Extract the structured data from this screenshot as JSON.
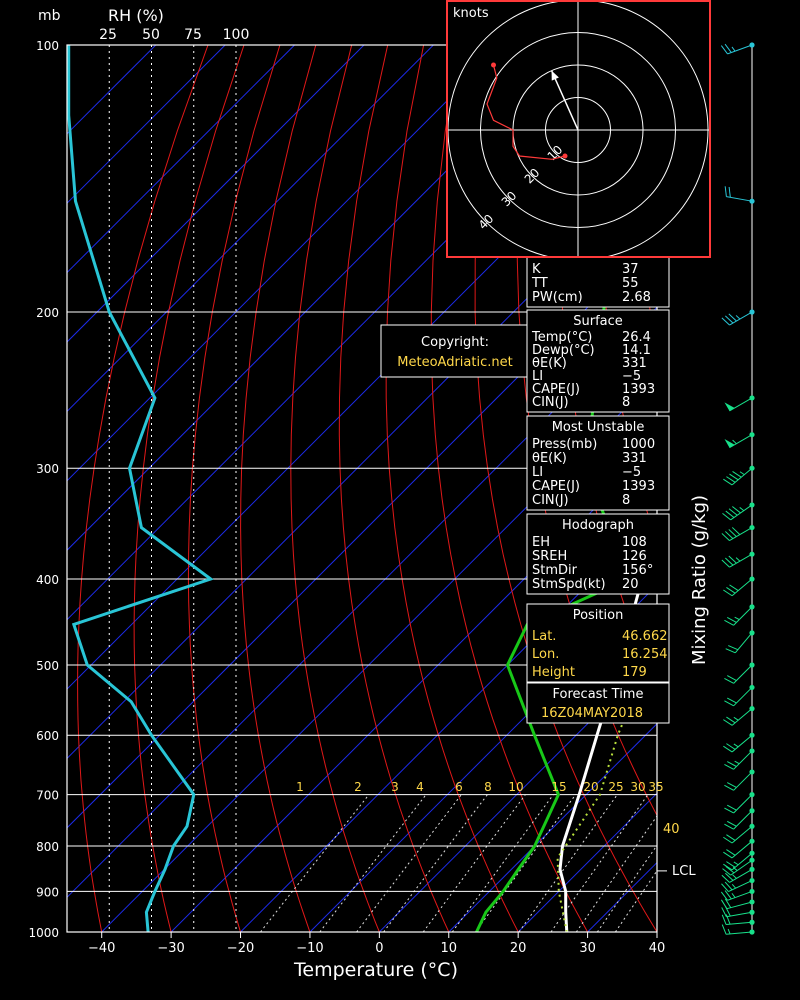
{
  "chart_data": {
    "type": "skew-t log-p sounding",
    "xlabel": "Temperature (°C)",
    "ylabel_left": "mb",
    "rh_axis_label": "RH (%)",
    "rh_ticks": [
      "25",
      "50",
      "75",
      "100"
    ],
    "mixing_ratio_axis_label": "Mixing Ratio (g/kg)",
    "mixing_ratio_labels": [
      "1",
      "2",
      "3",
      "4",
      "6",
      "8",
      "10",
      "15",
      "20",
      "25",
      "30",
      "35"
    ],
    "mixing_ratio_values": [
      1,
      2,
      3,
      4,
      6,
      8,
      10,
      15,
      20,
      25,
      30,
      35
    ],
    "x_ticks": [
      -40,
      -30,
      -20,
      -10,
      0,
      10,
      20,
      30,
      40
    ],
    "x_tick_labels": [
      "−40",
      "−30",
      "−20",
      "−10",
      "0",
      "10",
      "20",
      "30",
      "40"
    ],
    "xlim": [
      -45,
      40
    ],
    "ylim": [
      1000,
      100
    ],
    "pressure_levels": [
      100,
      200,
      300,
      400,
      500,
      600,
      700,
      800,
      900,
      1000
    ],
    "pressure_labels": [
      "100",
      "200",
      "300",
      "400",
      "500",
      "600",
      "700",
      "800",
      "900",
      "1000"
    ],
    "side_label_40": "40",
    "lcl_label": "LCL",
    "lcl_pressure": 825,
    "series": [
      {
        "name": "temperature",
        "color": "#ffffff",
        "points": [
          [
            1000,
            27
          ],
          [
            950,
            24
          ],
          [
            900,
            21
          ],
          [
            850,
            17
          ],
          [
            800,
            14
          ],
          [
            700,
            9
          ],
          [
            600,
            3
          ],
          [
            500,
            -4
          ],
          [
            400,
            -13
          ],
          [
            300,
            -24
          ],
          [
            250,
            -33
          ],
          [
            200,
            -41
          ],
          [
            150,
            -47
          ],
          [
            100,
            -56
          ]
        ]
      },
      {
        "name": "dewpoint",
        "color": "#18c818",
        "points": [
          [
            1000,
            14
          ],
          [
            950,
            12.5
          ],
          [
            900,
            12
          ],
          [
            850,
            11
          ],
          [
            800,
            10
          ],
          [
            700,
            6
          ],
          [
            600,
            -6
          ],
          [
            500,
            -20
          ],
          [
            450,
            -23
          ],
          [
            400,
            -15
          ],
          [
            300,
            -37
          ],
          [
            200,
            -57
          ],
          [
            150,
            -72
          ],
          [
            100,
            -76
          ]
        ]
      },
      {
        "name": "parcel",
        "color": "#b8e03c",
        "points": [
          [
            1000,
            27
          ],
          [
            900,
            20
          ],
          [
            825,
            15
          ],
          [
            700,
            12
          ],
          [
            600,
            6
          ],
          [
            500,
            0
          ],
          [
            400,
            -8
          ],
          [
            300,
            -20
          ],
          [
            250,
            -27
          ],
          [
            200,
            -37
          ],
          [
            150,
            -49
          ],
          [
            100,
            -66
          ]
        ]
      },
      {
        "name": "rh",
        "color": "#29c5d6",
        "points": [
          [
            1000,
            48
          ],
          [
            950,
            47
          ],
          [
            900,
            52
          ],
          [
            850,
            58
          ],
          [
            800,
            63
          ],
          [
            760,
            71
          ],
          [
            700,
            75
          ],
          [
            650,
            63
          ],
          [
            600,
            50
          ],
          [
            550,
            38
          ],
          [
            500,
            12
          ],
          [
            450,
            4
          ],
          [
            400,
            85
          ],
          [
            350,
            44
          ],
          [
            300,
            37
          ],
          [
            250,
            52
          ],
          [
            200,
            25
          ],
          [
            150,
            5
          ],
          [
            120,
            1
          ],
          [
            100,
            1
          ]
        ]
      }
    ],
    "wind_barbs": {
      "pressures": [
        100,
        150,
        200,
        250,
        275,
        300,
        330,
        350,
        375,
        400,
        430,
        460,
        500,
        530,
        560,
        600,
        625,
        660,
        700,
        730,
        760,
        790,
        815,
        830,
        850,
        875,
        900,
        925,
        950,
        975,
        1000
      ],
      "speeds_kt": [
        25,
        20,
        35,
        50,
        55,
        45,
        45,
        40,
        35,
        30,
        25,
        22,
        20,
        20,
        25,
        25,
        25,
        20,
        20,
        20,
        20,
        22,
        25,
        25,
        25,
        25,
        25,
        22,
        22,
        20,
        18
      ],
      "directions_deg": [
        250,
        280,
        240,
        240,
        240,
        230,
        235,
        240,
        240,
        230,
        225,
        220,
        225,
        225,
        230,
        230,
        225,
        225,
        225,
        225,
        230,
        230,
        230,
        235,
        240,
        245,
        250,
        255,
        260,
        265,
        265
      ]
    }
  },
  "copyright": {
    "line1": "Copyright:",
    "line2": "MeteoAdriatic.net"
  },
  "hodograph": {
    "title": "knots",
    "ring_labels": [
      "10",
      "20",
      "30",
      "40"
    ],
    "ring_values_kt": [
      10,
      20,
      30,
      40
    ],
    "trace_uv_kt": [
      [
        -4,
        -8
      ],
      [
        -8,
        -9
      ],
      [
        -18,
        -8
      ],
      [
        -20,
        -5
      ],
      [
        -20,
        0
      ],
      [
        -26,
        3
      ],
      [
        -28,
        8
      ],
      [
        -25,
        16
      ],
      [
        -26,
        20
      ]
    ]
  },
  "indices": {
    "rows": [
      {
        "label": "K",
        "value": "37"
      },
      {
        "label": "TT",
        "value": "55"
      },
      {
        "label": "PW(cm)",
        "value": "2.68"
      }
    ]
  },
  "surface": {
    "title": "Surface",
    "rows": [
      {
        "label": "Temp(°C)",
        "value": "26.4"
      },
      {
        "label": "Dewp(°C)",
        "value": "14.1"
      },
      {
        "label": "θE(K)",
        "value": "331"
      },
      {
        "label": "LI",
        "value": "−5"
      },
      {
        "label": "CAPE(J)",
        "value": "1393"
      },
      {
        "label": "CIN(J)",
        "value": "8"
      }
    ]
  },
  "most_unstable": {
    "title": "Most Unstable",
    "rows": [
      {
        "label": "Press(mb)",
        "value": "1000"
      },
      {
        "label": "θE(K)",
        "value": "331"
      },
      {
        "label": "LI",
        "value": "−5"
      },
      {
        "label": "CAPE(J)",
        "value": "1393"
      },
      {
        "label": "CIN(J)",
        "value": "8"
      }
    ]
  },
  "hodograph_params": {
    "title": "Hodograph",
    "rows": [
      {
        "label": "EH",
        "value": "108"
      },
      {
        "label": "SREH",
        "value": "126"
      },
      {
        "label": "StmDir",
        "value": "156°"
      },
      {
        "label": "StmSpd(kt)",
        "value": "20"
      }
    ]
  },
  "position": {
    "title": "Position",
    "rows": [
      {
        "label": "Lat.",
        "value": "46.662"
      },
      {
        "label": "Lon.",
        "value": "16.254"
      },
      {
        "label": "Height",
        "value": "179"
      }
    ]
  },
  "forecast": {
    "title": "Forecast Time",
    "value": "16Z04MAY2018"
  },
  "colors": {
    "isotherm": "#1c2be8",
    "dry_adiabat": "#e01818",
    "grid": "#ffffff",
    "panel_border": "#ffffff",
    "hodo_border": "#ff3a3a",
    "accent_text": "#ffd84a",
    "barb_upper": "#29c5d6",
    "barb_lower": "#18e08a"
  }
}
